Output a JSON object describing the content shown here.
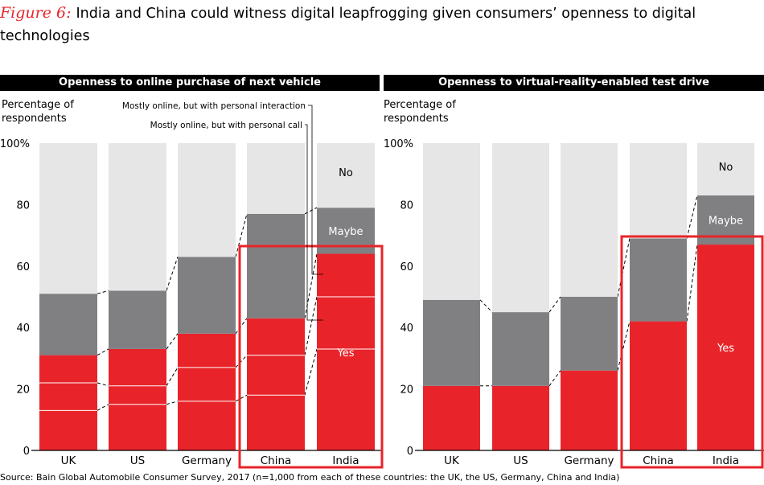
{
  "title": {
    "label": "Figure 6:",
    "text": "India and China could witness digital leapfrogging given consumers’ openness to digital technologies"
  },
  "source": "Source: Bain Global Automobile Consumer Survey, 2017 (n=1,000 from each of these countries: the UK, the US, Germany, China and India)",
  "colors": {
    "yes": "#e8242a",
    "maybe": "#808083",
    "no": "#e6e6e7",
    "highlight": "#e8242a",
    "axis": "#000000"
  },
  "chart_data": [
    {
      "type": "bar",
      "stacked": true,
      "title": "Openness to online purchase of next vehicle",
      "ylabel": "Percentage of respondents",
      "ylim": [
        0,
        100
      ],
      "yticks": [
        "0",
        "20",
        "40",
        "60",
        "80",
        "100%"
      ],
      "categories": [
        "UK",
        "US",
        "Germany",
        "China",
        "India"
      ],
      "series": [
        {
          "name": "Yes",
          "values": [
            31,
            33,
            38,
            43,
            64
          ]
        },
        {
          "name": "Maybe",
          "values": [
            20,
            19,
            25,
            34,
            15
          ]
        },
        {
          "name": "No",
          "values": [
            49,
            48,
            37,
            23,
            21
          ]
        }
      ],
      "yes_subdivisions": [
        [
          13,
          22
        ],
        [
          15,
          21
        ],
        [
          16,
          27
        ],
        [
          18,
          31
        ],
        [
          33,
          50
        ]
      ],
      "annotations": [
        "Mostly online, but with personal interaction",
        "Mostly online, but with personal call"
      ],
      "segment_labels": {
        "category": "India",
        "No": "No",
        "Maybe": "Maybe",
        "Yes": "Yes"
      },
      "highlighted_categories": [
        "China",
        "India"
      ]
    },
    {
      "type": "bar",
      "stacked": true,
      "title": "Openness to virtual-reality-enabled test drive",
      "ylabel": "Percentage of respondents",
      "ylim": [
        0,
        100
      ],
      "yticks": [
        "0",
        "20",
        "40",
        "60",
        "80",
        "100%"
      ],
      "categories": [
        "UK",
        "US",
        "Germany",
        "China",
        "India"
      ],
      "series": [
        {
          "name": "Yes",
          "values": [
            21,
            21,
            26,
            42,
            67
          ]
        },
        {
          "name": "Maybe",
          "values": [
            28,
            24,
            24,
            27,
            16
          ]
        },
        {
          "name": "No",
          "values": [
            51,
            55,
            50,
            31,
            17
          ]
        }
      ],
      "segment_labels": {
        "category": "India",
        "No": "No",
        "Maybe": "Maybe",
        "Yes": "Yes"
      },
      "highlighted_categories": [
        "China",
        "India"
      ]
    }
  ]
}
